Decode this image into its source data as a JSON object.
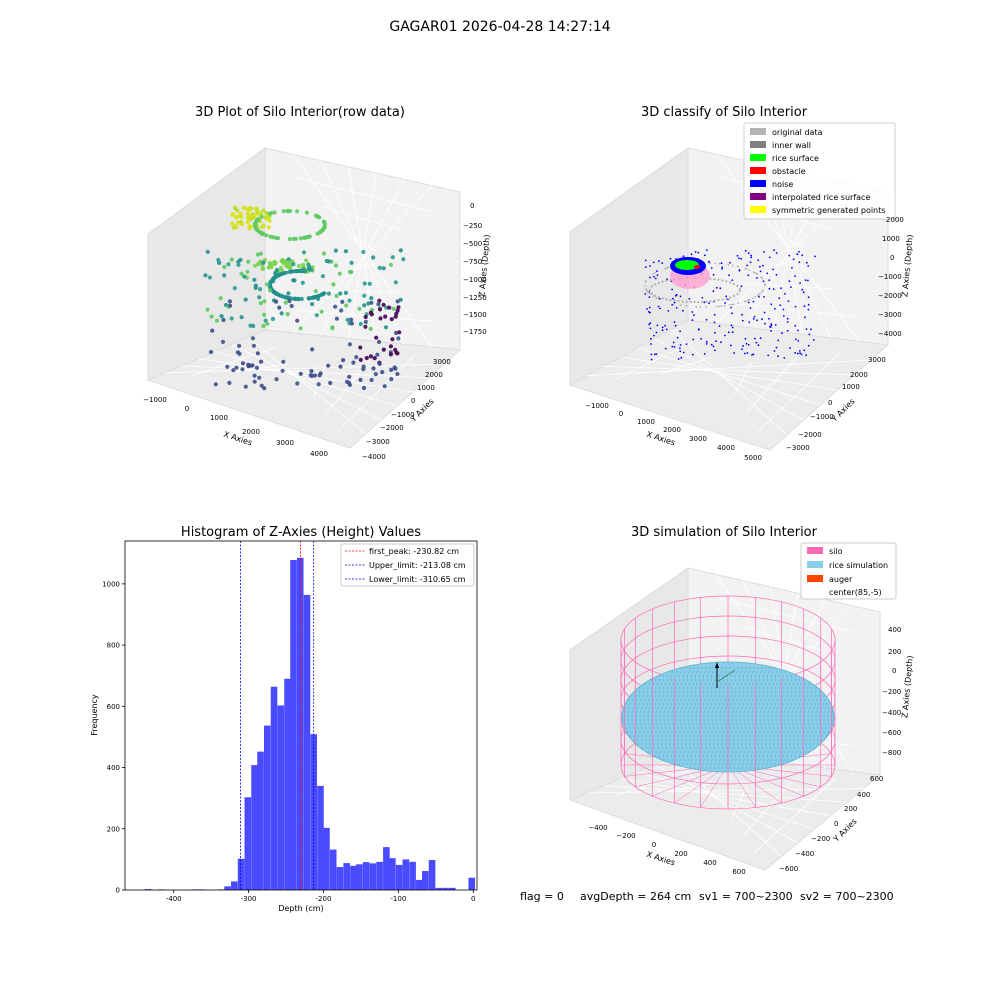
{
  "suptitle": "GAGAR01 2026-04-28 14:27:14",
  "status_line": {
    "flag": "flag = 0",
    "avg_depth": "avgDepth = 264 cm",
    "sv1": "sv1 = 700~2300",
    "sv2": "sv2 = 700~2300"
  },
  "colors": {
    "hist_bar": "#4a4aff",
    "peak_line": "#ff0000",
    "limit_line": "#0000ff",
    "silo": "#ff69b4",
    "rice_sim": "#87ceeb",
    "auger": "#ff4500",
    "pane": "#f2f2f2",
    "pane_dark": "#e6e6e6"
  },
  "chart_data": [
    {
      "type": "scatter",
      "subtype": "3d",
      "title": "3D Plot of Silo Interior(row data)",
      "xlabel": "X Axies",
      "ylabel": "Y Axies",
      "zlabel": "Z Axies (Depth)",
      "xticks": [
        "−1000",
        "0",
        "1000",
        "2000",
        "3000",
        "4000"
      ],
      "yticks": [
        "−4000",
        "−3000",
        "−2000",
        "−1000",
        "0",
        "1000",
        "2000",
        "3000"
      ],
      "zticks": [
        "0",
        "−250",
        "−500",
        "−750",
        "−1000",
        "−1250",
        "−1500",
        "−1750"
      ],
      "colormap": "viridis",
      "grid": true
    },
    {
      "type": "scatter",
      "subtype": "3d",
      "title": "3D classify of Silo Interior",
      "xlabel": "X Axies",
      "ylabel": "Y Axies",
      "zlabel": "Z Axies (Depth)",
      "xticks": [
        "−1000",
        "0",
        "1000",
        "2000",
        "3000",
        "4000",
        "5000"
      ],
      "yticks": [
        "−3000",
        "−2000",
        "−1000",
        "0",
        "1000",
        "2000",
        "3000"
      ],
      "zticks": [
        "2000",
        "1000",
        "0",
        "−1000",
        "−2000",
        "−3000",
        "−4000"
      ],
      "legend_position": "top-right",
      "legend": [
        {
          "label": "original data",
          "color": "#b3b3b3"
        },
        {
          "label": "inner wall",
          "color": "#808080"
        },
        {
          "label": "rice surface",
          "color": "#00ff00"
        },
        {
          "label": "obstacle",
          "color": "#ff0000"
        },
        {
          "label": "noise",
          "color": "#0000ff"
        },
        {
          "label": "interpolated rice surface",
          "color": "#800080"
        },
        {
          "label": "symmetric generated points",
          "color": "#ffff00"
        }
      ],
      "grid": true
    },
    {
      "type": "bar",
      "subtype": "histogram",
      "title": "Histogram of Z-Axies (Height) Values",
      "xlabel": "Depth (cm)",
      "ylabel": "Frequency",
      "xlim": [
        -465,
        5
      ],
      "ylim": [
        0,
        1140
      ],
      "xticks": [
        -400,
        -300,
        -200,
        -100,
        0
      ],
      "yticks": [
        0,
        200,
        400,
        600,
        800,
        1000
      ],
      "bin_width": 8.8,
      "bins": [
        {
          "x": -434,
          "y": 3
        },
        {
          "x": -425,
          "y": 0
        },
        {
          "x": -416,
          "y": 2
        },
        {
          "x": -407,
          "y": 0
        },
        {
          "x": -398,
          "y": 0
        },
        {
          "x": -389,
          "y": 0
        },
        {
          "x": -380,
          "y": 0
        },
        {
          "x": -372,
          "y": 2
        },
        {
          "x": -363,
          "y": 2
        },
        {
          "x": -354,
          "y": 0
        },
        {
          "x": -345,
          "y": 0
        },
        {
          "x": -336,
          "y": 2
        },
        {
          "x": -328,
          "y": 12
        },
        {
          "x": -319,
          "y": 28
        },
        {
          "x": -310,
          "y": 102
        },
        {
          "x": -301,
          "y": 303
        },
        {
          "x": -292,
          "y": 408
        },
        {
          "x": -284,
          "y": 452
        },
        {
          "x": -275,
          "y": 537
        },
        {
          "x": -266,
          "y": 664
        },
        {
          "x": -257,
          "y": 603
        },
        {
          "x": -248,
          "y": 690
        },
        {
          "x": -240,
          "y": 1078
        },
        {
          "x": -231,
          "y": 1085
        },
        {
          "x": -222,
          "y": 964
        },
        {
          "x": -213,
          "y": 509
        },
        {
          "x": -204,
          "y": 340
        },
        {
          "x": -196,
          "y": 203
        },
        {
          "x": -187,
          "y": 132
        },
        {
          "x": -178,
          "y": 75
        },
        {
          "x": -169,
          "y": 88
        },
        {
          "x": -160,
          "y": 79
        },
        {
          "x": -152,
          "y": 84
        },
        {
          "x": -143,
          "y": 91
        },
        {
          "x": -134,
          "y": 87
        },
        {
          "x": -125,
          "y": 92
        },
        {
          "x": -116,
          "y": 140
        },
        {
          "x": -108,
          "y": 104
        },
        {
          "x": -99,
          "y": 82
        },
        {
          "x": -90,
          "y": 100
        },
        {
          "x": -81,
          "y": 92
        },
        {
          "x": -72,
          "y": 33
        },
        {
          "x": -64,
          "y": 62
        },
        {
          "x": -55,
          "y": 98
        },
        {
          "x": -46,
          "y": 7
        },
        {
          "x": -37,
          "y": 7
        },
        {
          "x": -28,
          "y": 7
        },
        {
          "x": -20,
          "y": 0
        },
        {
          "x": -11,
          "y": 0
        },
        {
          "x": -2,
          "y": 40
        }
      ],
      "vlines": [
        {
          "x": -230.82,
          "label": "first_peak: -230.82 cm",
          "color": "#ff0000"
        },
        {
          "x": -213.08,
          "label": "Upper_limit: -213.08 cm",
          "color": "#0000ff"
        },
        {
          "x": -310.65,
          "label": "Lower_limit: -310.65 cm",
          "color": "#0000ff"
        }
      ],
      "legend_position": "top-right"
    },
    {
      "type": "scatter",
      "subtype": "3d-surface",
      "title": "3D simulation of Silo Interior",
      "xlabel": "X Axies",
      "ylabel": "Y Axies",
      "zlabel": "Z Axies (Depth)",
      "xticks": [
        "−400",
        "−200",
        "0",
        "200",
        "400",
        "600"
      ],
      "yticks": [
        "−600",
        "−400",
        "−200",
        "0",
        "200",
        "400",
        "600"
      ],
      "zticks": [
        "400",
        "200",
        "0",
        "−200",
        "−400",
        "−600",
        "−800"
      ],
      "legend_position": "top-right",
      "legend": [
        {
          "label": "silo",
          "color": "#ff69b4"
        },
        {
          "label": "rice simulation",
          "color": "#87ceeb"
        },
        {
          "label": "auger",
          "color": "#ff4500"
        },
        {
          "label": "center(85,-5)",
          "color": "none"
        }
      ],
      "grid": true
    }
  ]
}
